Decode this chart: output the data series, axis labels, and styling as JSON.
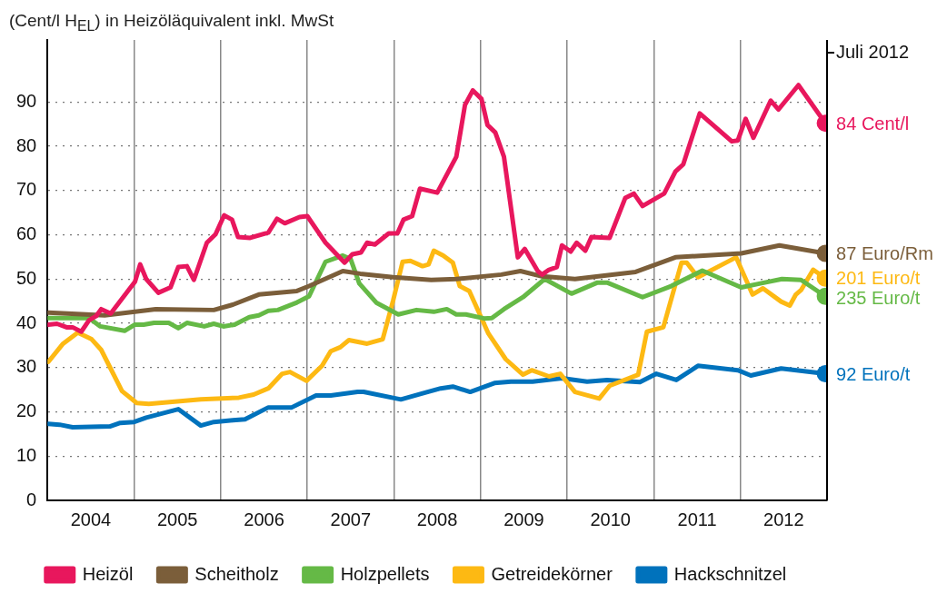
{
  "chart_data": {
    "type": "line",
    "ylabel": "(Cent/l H$_{EL}$) in Heizöläquivalent inkl. MwSt",
    "xlim": [
      2004,
      2013
    ],
    "ylim": [
      0,
      104
    ],
    "xticks": [
      {
        "value": 2004.5,
        "label": "2004"
      },
      {
        "value": 2005,
        "label": null
      },
      {
        "value": 2005.5,
        "label": "2005"
      },
      {
        "value": 2006,
        "label": null
      },
      {
        "value": 2006.5,
        "label": "2006"
      },
      {
        "value": 2007,
        "label": null
      },
      {
        "value": 2007.5,
        "label": "2007"
      },
      {
        "value": 2008,
        "label": null
      },
      {
        "value": 2008.5,
        "label": "2008"
      },
      {
        "value": 2009,
        "label": null
      },
      {
        "value": 2009.5,
        "label": "2009"
      },
      {
        "value": 2010,
        "label": null
      },
      {
        "value": 2010.5,
        "label": "2010"
      },
      {
        "value": 2011,
        "label": null
      },
      {
        "value": 2011.5,
        "label": "2011"
      },
      {
        "value": 2012,
        "label": null
      },
      {
        "value": 2012.5,
        "label": "2012"
      }
    ],
    "yticks": [
      0,
      10,
      20,
      30,
      40,
      50,
      60,
      70,
      80,
      90
    ],
    "grid": true,
    "legend": "bottom",
    "line_style": "solid",
    "series": [
      {
        "name": "Heizöl",
        "color": "#e8175d",
        "x": [
          2004.01,
          2004.11,
          2004.22,
          2004.29,
          2004.39,
          2004.48,
          2004.56,
          2004.62,
          2004.73,
          2004.92,
          2005.01,
          2005.07,
          2005.14,
          2005.28,
          2005.42,
          2005.51,
          2005.61,
          2005.69,
          2005.84,
          2005.94,
          2006.04,
          2006.13,
          2006.2,
          2006.34,
          2006.55,
          2006.65,
          2006.74,
          2006.91,
          2007.0,
          2007.21,
          2007.43,
          2007.52,
          2007.62,
          2007.69,
          2007.78,
          2007.94,
          2008.04,
          2008.11,
          2008.21,
          2008.3,
          2008.5,
          2008.72,
          2008.82,
          2008.91,
          2009.01,
          2009.08,
          2009.17,
          2009.27,
          2009.43,
          2009.51,
          2009.66,
          2009.71,
          2009.79,
          2009.88,
          2009.94,
          2010.04,
          2010.11,
          2010.21,
          2010.28,
          2010.49,
          2010.67,
          2010.77,
          2010.87,
          2011.12,
          2011.25,
          2011.34,
          2011.53,
          2011.9,
          2011.97,
          2012.06,
          2012.15,
          2012.35,
          2012.44,
          2012.67,
          2012.98
        ],
        "values": [
          39.7,
          39.9,
          39.1,
          39.1,
          38.1,
          40.7,
          41.6,
          43.2,
          42.2,
          47.1,
          49.4,
          53.3,
          50.0,
          46.9,
          48.1,
          52.7,
          52.9,
          49.8,
          58.2,
          60.1,
          64.4,
          63.4,
          59.5,
          59.3,
          60.5,
          63.6,
          62.6,
          64.0,
          64.2,
          58.2,
          53.7,
          55.6,
          56.0,
          58.2,
          57.8,
          60.3,
          60.3,
          63.4,
          64.2,
          70.4,
          69.5,
          77.6,
          89.3,
          92.6,
          90.7,
          84.8,
          83.1,
          77.6,
          54.9,
          56.8,
          51.8,
          51.0,
          52.1,
          52.7,
          57.6,
          56.2,
          58.2,
          56.4,
          59.5,
          59.3,
          68.3,
          69.3,
          66.5,
          69.3,
          74.3,
          75.9,
          87.4,
          81.1,
          81.3,
          86.2,
          81.9,
          90.3,
          88.3,
          93.8,
          85.2
        ]
      },
      {
        "name": "Scheitholz",
        "color": "#7b5e3a",
        "x": [
          2004.01,
          2004.66,
          2005.25,
          2005.92,
          2006.14,
          2006.44,
          2006.88,
          2007.02,
          2007.41,
          2007.61,
          2007.99,
          2008.43,
          2008.72,
          2009.24,
          2009.46,
          2009.71,
          2010.09,
          2010.79,
          2011.25,
          2012.01,
          2012.45,
          2012.98
        ],
        "values": [
          42.4,
          41.8,
          43.2,
          43.0,
          44.2,
          46.5,
          47.3,
          48.4,
          51.8,
          51.2,
          50.4,
          49.8,
          50.0,
          51.0,
          51.8,
          50.6,
          50.0,
          51.6,
          54.9,
          55.8,
          57.6,
          55.8
        ]
      },
      {
        "name": "Holzpellets",
        "color": "#65b946",
        "x": [
          2004.01,
          2004.48,
          2004.61,
          2004.89,
          2005.01,
          2005.11,
          2005.23,
          2005.4,
          2005.51,
          2005.61,
          2005.81,
          2005.92,
          2006.03,
          2006.16,
          2006.33,
          2006.44,
          2006.55,
          2006.66,
          2006.88,
          2007.02,
          2007.21,
          2007.41,
          2007.5,
          2007.6,
          2007.8,
          2008.05,
          2008.26,
          2008.46,
          2008.61,
          2008.72,
          2008.83,
          2009.04,
          2009.13,
          2009.27,
          2009.49,
          2009.74,
          2010.05,
          2010.35,
          2010.46,
          2010.87,
          2011.2,
          2011.56,
          2012.01,
          2012.23,
          2012.48,
          2012.7,
          2012.98
        ],
        "values": [
          41.2,
          41.2,
          39.3,
          38.3,
          39.7,
          39.7,
          40.1,
          40.1,
          38.9,
          40.1,
          39.3,
          39.9,
          39.3,
          39.7,
          41.4,
          41.8,
          42.8,
          43.0,
          44.7,
          46.1,
          53.9,
          55.3,
          54.5,
          49.0,
          44.6,
          42.0,
          43.0,
          42.6,
          43.2,
          42.0,
          42.0,
          41.1,
          41.2,
          43.2,
          45.9,
          50.0,
          46.7,
          49.2,
          49.2,
          45.9,
          48.4,
          51.9,
          48.1,
          49.0,
          50.0,
          49.8,
          46.1
        ]
      },
      {
        "name": "Getreidekörner",
        "color": "#fdb913",
        "x": [
          2004.01,
          2004.18,
          2004.35,
          2004.51,
          2004.62,
          2004.86,
          2005.03,
          2005.17,
          2005.77,
          2006.21,
          2006.38,
          2006.55,
          2006.71,
          2006.8,
          2006.99,
          2007.17,
          2007.27,
          2007.38,
          2007.48,
          2007.69,
          2007.87,
          2007.99,
          2008.1,
          2008.19,
          2008.33,
          2008.4,
          2008.46,
          2008.57,
          2008.68,
          2008.76,
          2008.87,
          2009.09,
          2009.29,
          2009.49,
          2009.59,
          2009.79,
          2009.92,
          2010.09,
          2010.37,
          2010.49,
          2010.82,
          2010.92,
          2011.11,
          2011.32,
          2011.38,
          2011.51,
          2011.95,
          2012.14,
          2012.26,
          2012.47,
          2012.57,
          2012.64,
          2012.7,
          2012.84,
          2012.98
        ],
        "values": [
          31.3,
          35.4,
          37.9,
          36.4,
          34.0,
          24.7,
          22.0,
          21.8,
          22.8,
          23.2,
          23.9,
          25.3,
          28.6,
          29.0,
          27.0,
          30.4,
          33.7,
          34.6,
          36.2,
          35.4,
          36.4,
          45.1,
          53.9,
          54.1,
          52.9,
          53.3,
          56.4,
          55.3,
          53.7,
          48.4,
          47.3,
          37.7,
          31.9,
          28.4,
          29.4,
          28.0,
          28.6,
          24.5,
          23.0,
          25.9,
          28.4,
          38.1,
          39.1,
          53.7,
          53.7,
          50.4,
          54.9,
          46.5,
          47.9,
          44.9,
          44.0,
          46.5,
          47.5,
          52.1,
          50.2
        ]
      },
      {
        "name": "Hackschnitzel",
        "color": "#0072bc",
        "x": [
          2004.01,
          2004.14,
          2004.29,
          2004.72,
          2004.84,
          2005.0,
          2005.14,
          2005.51,
          2005.77,
          2005.92,
          2006.14,
          2006.28,
          2006.55,
          2006.82,
          2007.1,
          2007.27,
          2007.58,
          2007.65,
          2008.08,
          2008.35,
          2008.54,
          2008.68,
          2008.88,
          2009.16,
          2009.35,
          2009.6,
          2009.94,
          2010.23,
          2010.46,
          2010.84,
          2011.03,
          2011.26,
          2011.51,
          2011.97,
          2012.12,
          2012.47,
          2012.98
        ],
        "values": [
          17.3,
          17.1,
          16.5,
          16.7,
          17.5,
          17.7,
          18.7,
          20.6,
          16.9,
          17.7,
          18.1,
          18.3,
          21.0,
          21.0,
          23.7,
          23.7,
          24.5,
          24.5,
          22.8,
          24.3,
          25.3,
          25.7,
          24.5,
          26.5,
          26.8,
          26.8,
          27.6,
          26.8,
          27.2,
          26.7,
          28.6,
          27.2,
          30.4,
          29.4,
          28.2,
          29.8,
          28.6
        ]
      }
    ],
    "annotations": [
      "84 Cent/l",
      "87 Euro/Rm",
      "235 Euro/t",
      "201 Euro/t",
      "92 Euro/t",
      "Juli 2012"
    ]
  }
}
